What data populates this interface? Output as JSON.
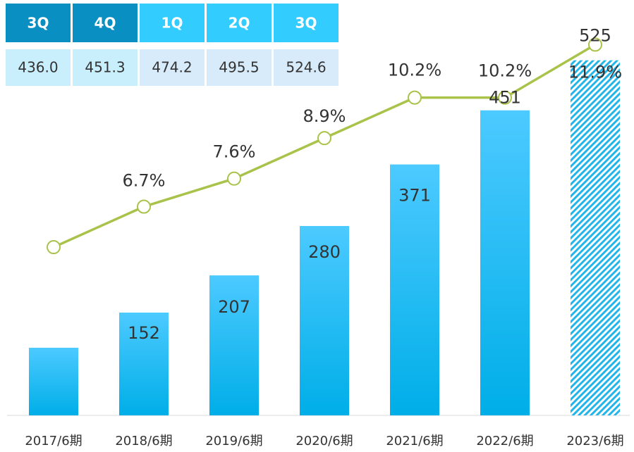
{
  "table": {
    "header": [
      "3Q",
      "4Q",
      "1Q",
      "2Q",
      "3Q"
    ],
    "row": [
      "436.0",
      "451.3",
      "474.2",
      "495.5",
      "524.6"
    ]
  },
  "chart_data": {
    "type": "bar",
    "categories": [
      "2017/6期",
      "2018/6期",
      "2019/6期",
      "2020/6期",
      "2021/6期",
      "2022/6期",
      "2023/6期"
    ],
    "ylim": [
      0,
      585
    ],
    "y2lim": [
      0,
      12.7
    ],
    "series": [
      {
        "type": "bar",
        "color": "#1ebcf5",
        "values": [
          100,
          152,
          207,
          280,
          371,
          451,
          525
        ],
        "value_labels": [
          null,
          "152",
          "207",
          "280",
          "371",
          "451",
          "525"
        ]
      },
      {
        "type": "line",
        "axis": "y2",
        "color": "#a9c24a",
        "values": [
          5.4,
          6.7,
          7.6,
          8.9,
          10.2,
          10.2,
          11.9
        ],
        "value_labels": [
          null,
          "6.7%",
          "7.6%",
          "8.9%",
          "10.2%",
          "10.2%",
          "11.9%"
        ]
      }
    ]
  }
}
